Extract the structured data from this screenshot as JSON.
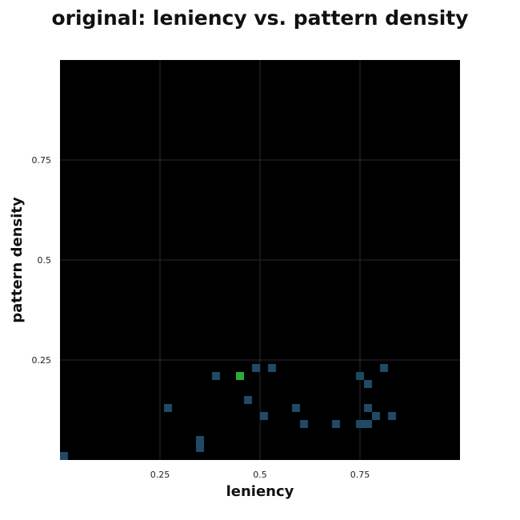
{
  "chart_data": {
    "type": "heatmap",
    "title": "original: leniency vs. pattern density",
    "xlabel": "leniency",
    "ylabel": "pattern density",
    "xlim": [
      0,
      1
    ],
    "ylim": [
      0,
      1
    ],
    "xticks": [
      0.25,
      0.5,
      0.75
    ],
    "yticks": [
      0.25,
      0.5,
      0.75
    ],
    "xtick_labels": [
      "0.25",
      "0.5",
      "0.75"
    ],
    "ytick_labels": [
      "0.25",
      "0.5",
      "0.75"
    ],
    "grid": true,
    "cell_size": 0.02,
    "background_color": "#000000",
    "grid_color": "#2a2a2a",
    "cell_color": "#1f4a63",
    "highlight_color": "#2ea83a",
    "cells": [
      {
        "x": 0.0,
        "y": 0.0
      },
      {
        "x": 0.26,
        "y": 0.12
      },
      {
        "x": 0.34,
        "y": 0.02
      },
      {
        "x": 0.34,
        "y": 0.04
      },
      {
        "x": 0.38,
        "y": 0.2
      },
      {
        "x": 0.44,
        "y": 0.2,
        "highlight": true
      },
      {
        "x": 0.46,
        "y": 0.14
      },
      {
        "x": 0.48,
        "y": 0.22
      },
      {
        "x": 0.5,
        "y": 0.1
      },
      {
        "x": 0.52,
        "y": 0.22
      },
      {
        "x": 0.58,
        "y": 0.12
      },
      {
        "x": 0.6,
        "y": 0.08
      },
      {
        "x": 0.68,
        "y": 0.08
      },
      {
        "x": 0.74,
        "y": 0.2
      },
      {
        "x": 0.74,
        "y": 0.08
      },
      {
        "x": 0.76,
        "y": 0.18
      },
      {
        "x": 0.76,
        "y": 0.12
      },
      {
        "x": 0.76,
        "y": 0.08
      },
      {
        "x": 0.78,
        "y": 0.1
      },
      {
        "x": 0.8,
        "y": 0.22
      },
      {
        "x": 0.82,
        "y": 0.1
      }
    ]
  }
}
